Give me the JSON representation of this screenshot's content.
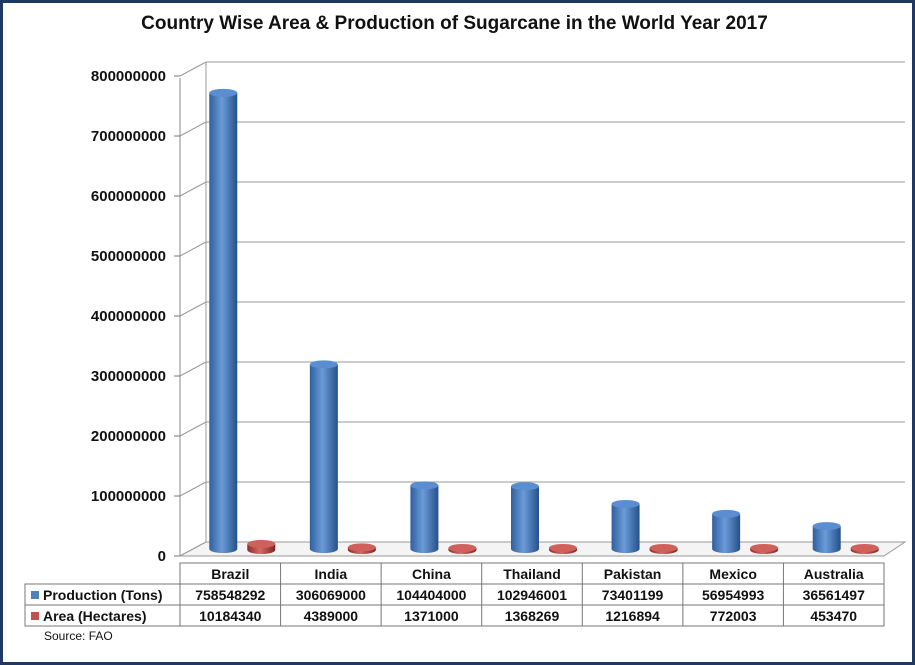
{
  "chart_data": {
    "type": "bar",
    "title": "Country Wise Area & Production of Sugarcane in the World Year 2017",
    "categories": [
      "Brazil",
      "India",
      "China",
      "Thailand",
      "Pakistan",
      "Mexico",
      "Australia"
    ],
    "series": [
      {
        "name": "Production (Tons)",
        "color": "#4f81bd",
        "values": [
          758548292,
          306069000,
          104404000,
          102946001,
          73401199,
          56954993,
          36561497
        ]
      },
      {
        "name": "Area (Hectares)",
        "color": "#c0504d",
        "values": [
          10184340,
          4389000,
          1371000,
          1368269,
          1216894,
          772003,
          453470
        ]
      }
    ],
    "yticks": [
      "0",
      "100000000",
      "200000000",
      "300000000",
      "400000000",
      "500000000",
      "600000000",
      "700000000",
      "800000000"
    ],
    "ylim": [
      0,
      800000000
    ],
    "grid": true,
    "data_table": true
  },
  "source": "Source: FAO"
}
